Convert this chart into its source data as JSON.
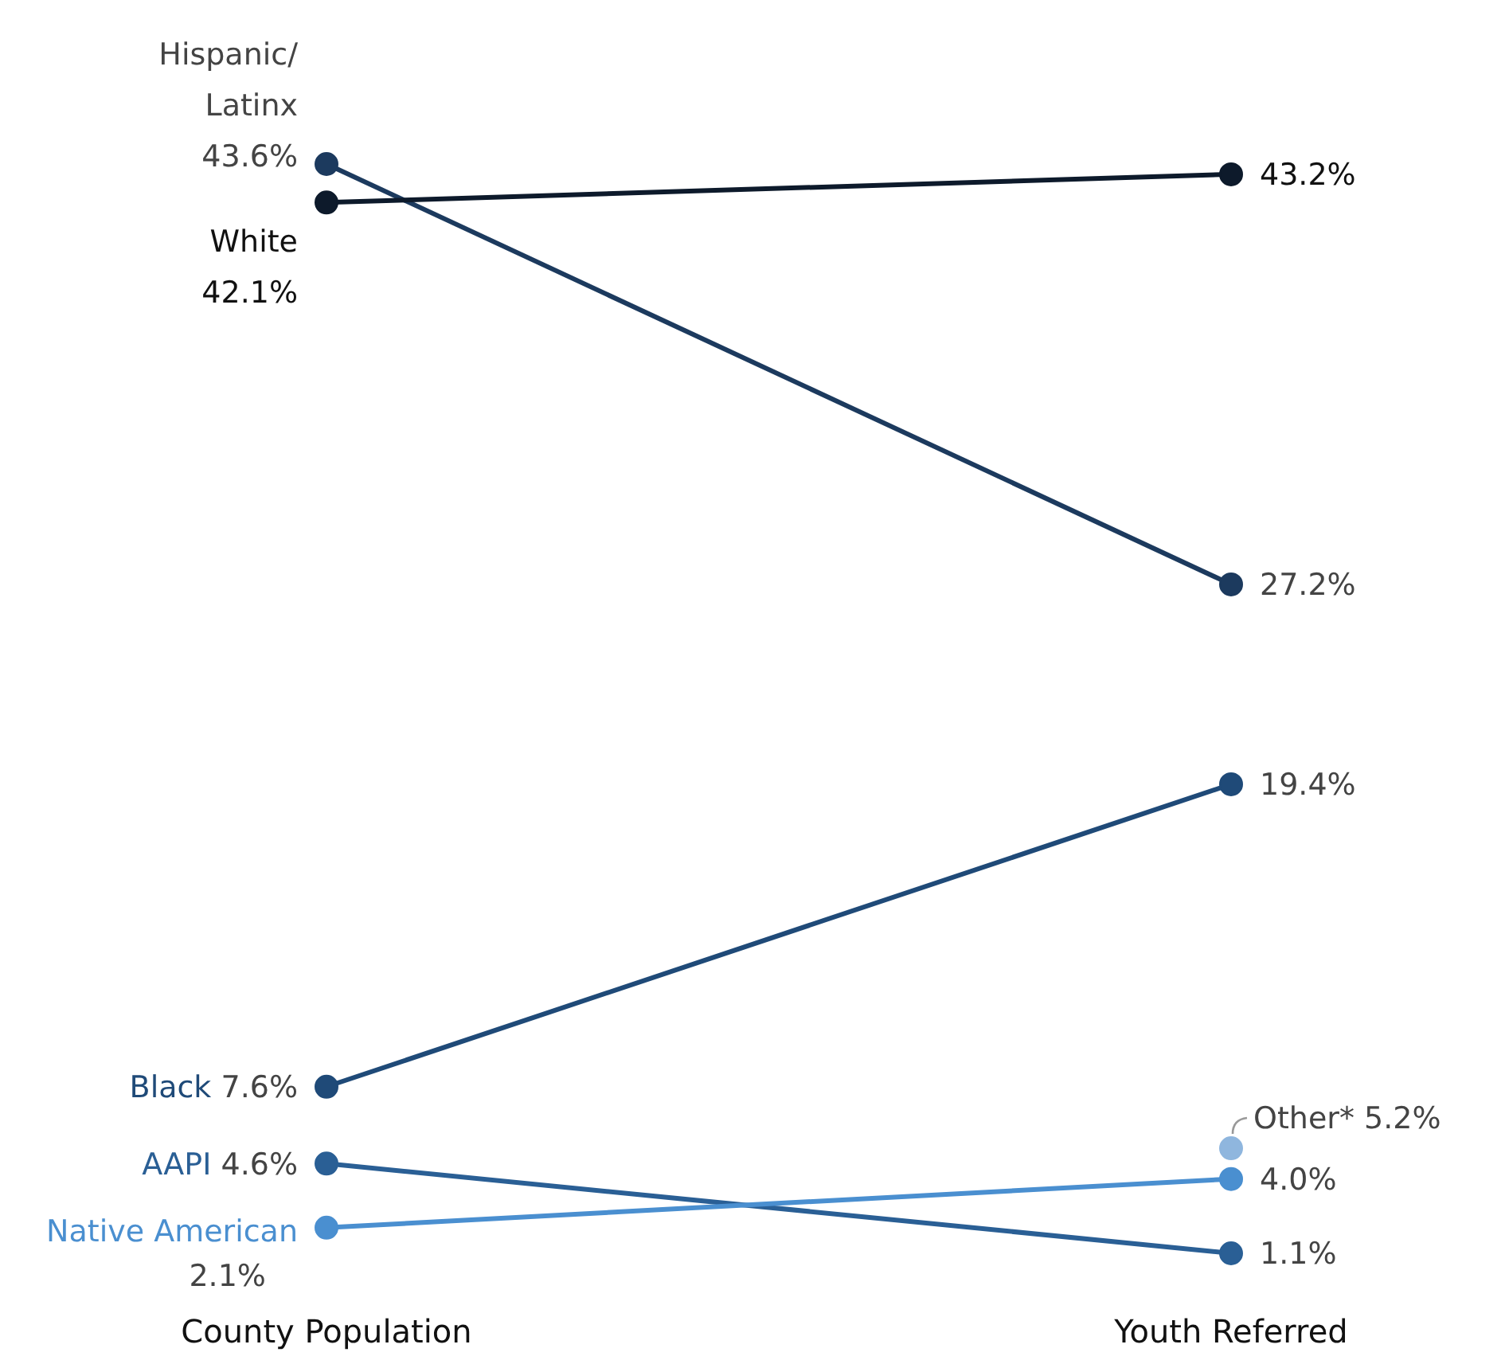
{
  "chart_data": {
    "type": "line",
    "categories": [
      "County Population",
      "Youth Referred"
    ],
    "marker": "circle",
    "line_style": "solid",
    "legend": false,
    "grid": false,
    "series": [
      {
        "name": "Hispanic/Latinx",
        "color": "#1c3a5e",
        "values": [
          43.6,
          27.2
        ],
        "value_labels": [
          "43.6%",
          "27.2%"
        ]
      },
      {
        "name": "White",
        "color": "#0d1a2b",
        "values": [
          42.1,
          43.2
        ],
        "value_labels": [
          "42.1%",
          "43.2%"
        ]
      },
      {
        "name": "Black",
        "color": "#1f4a78",
        "values": [
          7.6,
          19.4
        ],
        "value_labels": [
          "7.6%",
          "19.4%"
        ]
      },
      {
        "name": "AAPI",
        "color": "#2a5f95",
        "values": [
          4.6,
          1.1
        ],
        "value_labels": [
          "4.6%",
          "1.1%"
        ]
      },
      {
        "name": "Native American",
        "color": "#4a8fd0",
        "values": [
          2.1,
          4.0
        ],
        "value_labels": [
          "2.1%",
          "4.0%"
        ]
      },
      {
        "name": "Other*",
        "color": "#8fb6de",
        "values": [
          null,
          5.2
        ],
        "value_labels": [
          null,
          "5.2%"
        ]
      }
    ]
  }
}
